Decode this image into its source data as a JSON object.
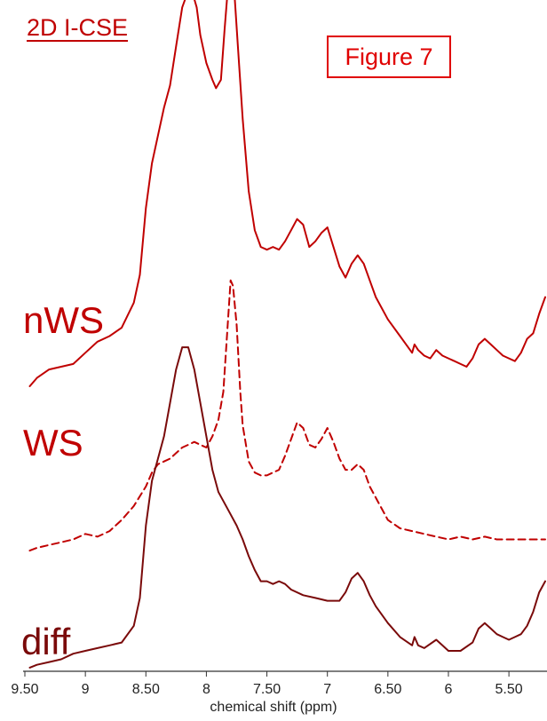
{
  "chart_data": {
    "type": "line",
    "title": "2D I-CSE",
    "figure_label": "Figure 7",
    "xlabel": "chemical shift  (ppm)",
    "ylabel": "",
    "x_reversed": true,
    "xlim": [
      9.5,
      5.2
    ],
    "ylim": [
      0,
      12
    ],
    "xticks": [
      9.5,
      9,
      8.5,
      8,
      7.5,
      7,
      6.5,
      6,
      5.5
    ],
    "xtick_labels": [
      "9.50",
      "9",
      "8.50",
      "8",
      "7.50",
      "7",
      "6.50",
      "6",
      "5.50"
    ],
    "grid": false,
    "legend": "none",
    "series": [
      {
        "name": "nWS",
        "color": "#c00000",
        "style": "solid",
        "x": [
          9.46,
          9.4,
          9.3,
          9.2,
          9.1,
          9.0,
          8.9,
          8.8,
          8.7,
          8.6,
          8.55,
          8.5,
          8.45,
          8.4,
          8.35,
          8.3,
          8.25,
          8.2,
          8.15,
          8.12,
          8.08,
          8.05,
          8.0,
          7.95,
          7.92,
          7.88,
          7.85,
          7.82,
          7.8,
          7.77,
          7.74,
          7.7,
          7.65,
          7.6,
          7.55,
          7.5,
          7.45,
          7.4,
          7.35,
          7.3,
          7.25,
          7.2,
          7.15,
          7.1,
          7.05,
          7.0,
          6.95,
          6.9,
          6.85,
          6.8,
          6.75,
          6.7,
          6.65,
          6.6,
          6.5,
          6.4,
          6.3,
          6.28,
          6.25,
          6.2,
          6.15,
          6.1,
          6.05,
          6.0,
          5.95,
          5.9,
          5.85,
          5.8,
          5.75,
          5.7,
          5.65,
          5.6,
          5.55,
          5.5,
          5.45,
          5.4,
          5.35,
          5.3,
          5.25,
          5.2
        ],
        "y": [
          5.1,
          5.25,
          5.4,
          5.45,
          5.5,
          5.7,
          5.9,
          6.0,
          6.15,
          6.6,
          7.1,
          8.3,
          9.1,
          9.6,
          10.1,
          10.5,
          11.2,
          11.9,
          12.2,
          12.2,
          11.9,
          11.4,
          10.9,
          10.6,
          10.45,
          10.6,
          11.5,
          12.3,
          12.5,
          12.2,
          11.2,
          9.9,
          8.6,
          7.9,
          7.6,
          7.55,
          7.6,
          7.55,
          7.7,
          7.9,
          8.1,
          8.0,
          7.6,
          7.7,
          7.85,
          7.95,
          7.6,
          7.25,
          7.05,
          7.3,
          7.45,
          7.3,
          7.0,
          6.7,
          6.3,
          6.0,
          5.7,
          5.85,
          5.75,
          5.65,
          5.6,
          5.75,
          5.65,
          5.6,
          5.55,
          5.5,
          5.45,
          5.6,
          5.85,
          5.95,
          5.85,
          5.75,
          5.65,
          5.6,
          5.55,
          5.7,
          5.95,
          6.05,
          6.4,
          6.7
        ]
      },
      {
        "name": "WS",
        "color": "#c00000",
        "style": "dashed",
        "x": [
          9.46,
          9.4,
          9.3,
          9.2,
          9.1,
          9.0,
          8.9,
          8.8,
          8.7,
          8.6,
          8.5,
          8.45,
          8.4,
          8.35,
          8.3,
          8.25,
          8.2,
          8.15,
          8.1,
          8.05,
          8.0,
          7.95,
          7.9,
          7.86,
          7.83,
          7.8,
          7.78,
          7.75,
          7.72,
          7.7,
          7.65,
          7.6,
          7.55,
          7.5,
          7.45,
          7.4,
          7.35,
          7.3,
          7.25,
          7.2,
          7.15,
          7.1,
          7.05,
          7.0,
          6.95,
          6.9,
          6.85,
          6.8,
          6.75,
          6.7,
          6.65,
          6.6,
          6.5,
          6.4,
          6.3,
          6.2,
          6.1,
          6.0,
          5.9,
          5.8,
          5.7,
          5.6,
          5.5,
          5.4,
          5.3,
          5.2
        ],
        "y": [
          2.15,
          2.2,
          2.25,
          2.3,
          2.35,
          2.45,
          2.4,
          2.5,
          2.7,
          2.95,
          3.3,
          3.55,
          3.7,
          3.75,
          3.8,
          3.9,
          4.0,
          4.05,
          4.1,
          4.05,
          4.0,
          4.2,
          4.5,
          5.0,
          6.0,
          7.0,
          6.9,
          6.2,
          5.0,
          4.4,
          3.75,
          3.55,
          3.5,
          3.5,
          3.55,
          3.6,
          3.85,
          4.15,
          4.45,
          4.35,
          4.05,
          4.0,
          4.15,
          4.35,
          4.1,
          3.8,
          3.6,
          3.6,
          3.7,
          3.6,
          3.3,
          3.1,
          2.7,
          2.55,
          2.5,
          2.45,
          2.4,
          2.35,
          2.4,
          2.35,
          2.4,
          2.35,
          2.35,
          2.35,
          2.35,
          2.35
        ]
      },
      {
        "name": "diff",
        "color": "#7a0a0a",
        "style": "solid",
        "x": [
          9.46,
          9.4,
          9.3,
          9.2,
          9.1,
          9.0,
          8.9,
          8.8,
          8.7,
          8.6,
          8.55,
          8.5,
          8.45,
          8.4,
          8.35,
          8.3,
          8.25,
          8.2,
          8.15,
          8.1,
          8.05,
          8.0,
          7.95,
          7.9,
          7.85,
          7.8,
          7.75,
          7.7,
          7.65,
          7.6,
          7.55,
          7.5,
          7.45,
          7.4,
          7.35,
          7.3,
          7.2,
          7.1,
          7.0,
          6.9,
          6.85,
          6.8,
          6.75,
          6.7,
          6.65,
          6.6,
          6.5,
          6.4,
          6.3,
          6.28,
          6.25,
          6.2,
          6.1,
          6.05,
          6.0,
          5.9,
          5.8,
          5.75,
          5.7,
          5.65,
          5.6,
          5.55,
          5.5,
          5.45,
          5.4,
          5.35,
          5.3,
          5.25,
          5.2
        ],
        "y": [
          0.05,
          0.1,
          0.15,
          0.2,
          0.3,
          0.35,
          0.4,
          0.45,
          0.5,
          0.8,
          1.3,
          2.6,
          3.4,
          3.8,
          4.2,
          4.8,
          5.4,
          5.8,
          5.8,
          5.4,
          4.8,
          4.2,
          3.6,
          3.2,
          3.0,
          2.8,
          2.6,
          2.35,
          2.05,
          1.8,
          1.6,
          1.6,
          1.55,
          1.6,
          1.55,
          1.45,
          1.35,
          1.3,
          1.25,
          1.25,
          1.4,
          1.65,
          1.75,
          1.6,
          1.35,
          1.15,
          0.85,
          0.6,
          0.45,
          0.6,
          0.45,
          0.4,
          0.55,
          0.45,
          0.35,
          0.35,
          0.5,
          0.75,
          0.85,
          0.75,
          0.65,
          0.6,
          0.55,
          0.6,
          0.65,
          0.8,
          1.05,
          1.4,
          1.6
        ]
      }
    ]
  }
}
